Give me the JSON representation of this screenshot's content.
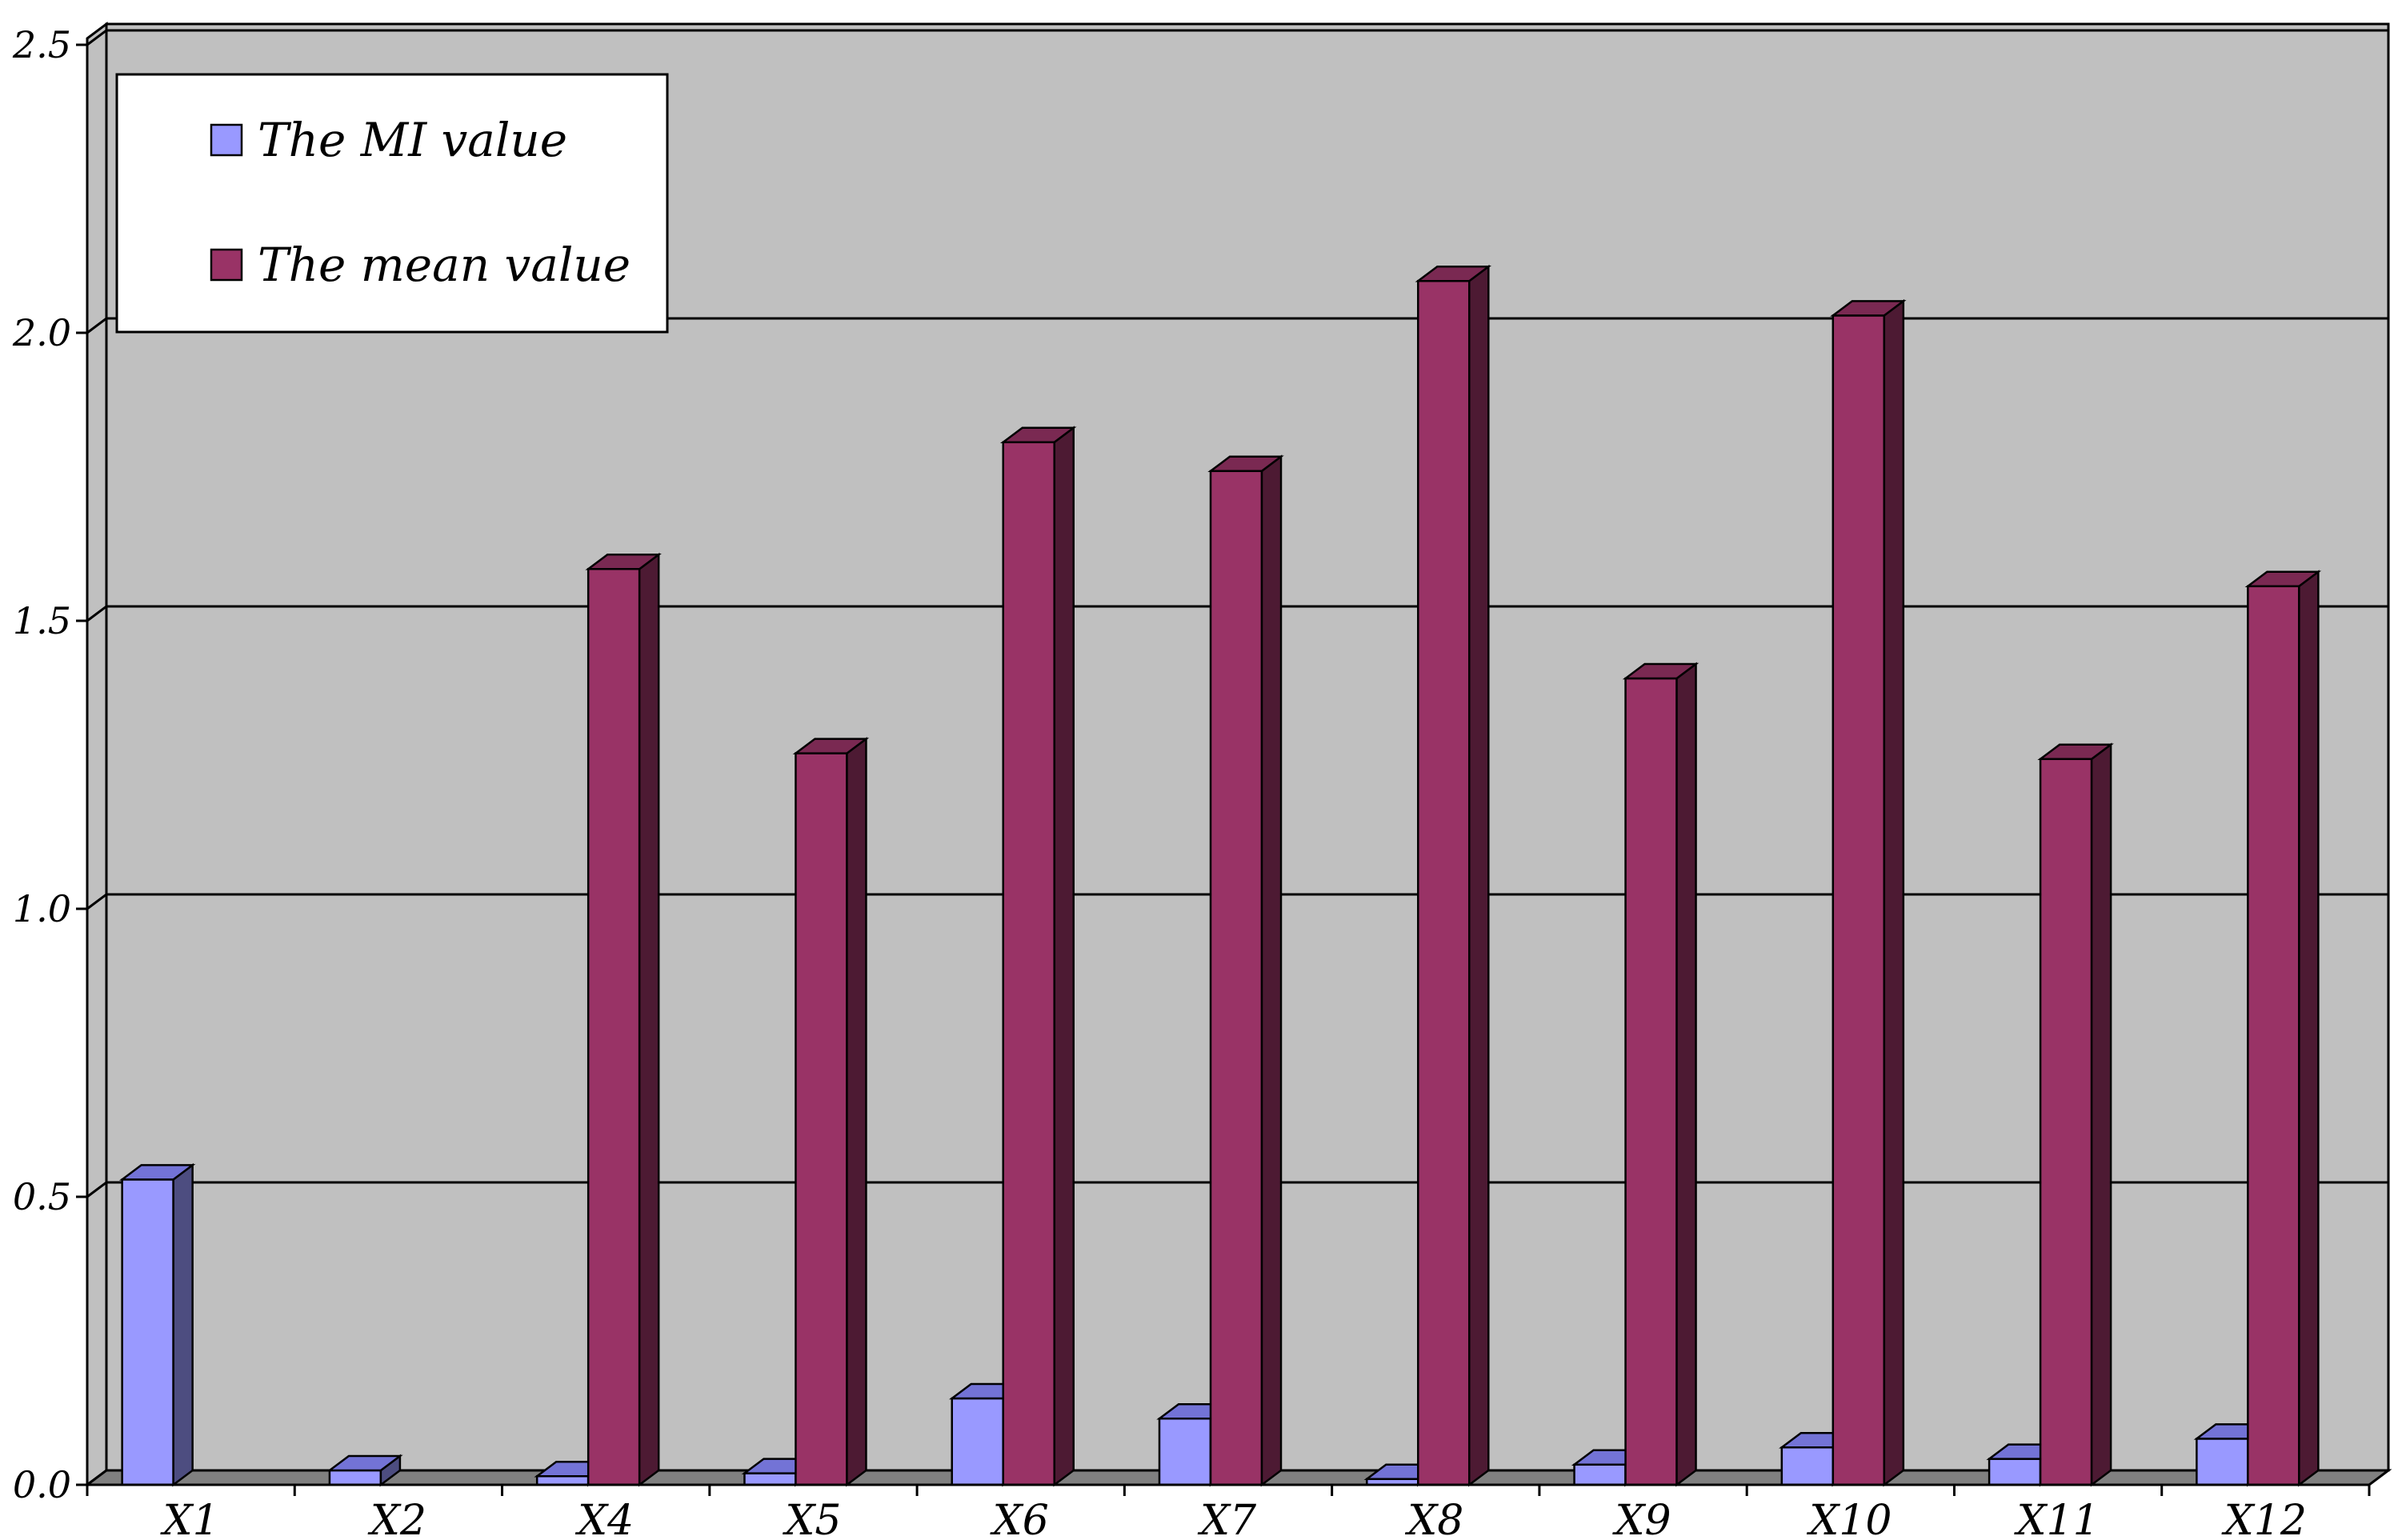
{
  "chart_data": {
    "type": "bar",
    "categories": [
      "X1",
      "X2",
      "X4",
      "X5",
      "X6",
      "X7",
      "X8",
      "X9",
      "X10",
      "X11",
      "X12"
    ],
    "series": [
      {
        "name": "The MI value",
        "color": "#9999ff",
        "side_color": "#4d4d80",
        "top_color": "#7373d6",
        "values": [
          0.53,
          0.025,
          0.015,
          0.02,
          0.15,
          0.115,
          0.01,
          0.035,
          0.065,
          0.045,
          0.08
        ]
      },
      {
        "name": "The mean value",
        "color": "#993366",
        "side_color": "#4d1a33",
        "top_color": "#7a2952",
        "values": [
          null,
          null,
          1.59,
          1.27,
          1.81,
          1.76,
          2.09,
          1.4,
          2.03,
          1.26,
          1.56
        ]
      }
    ],
    "y_ticks": [
      "0.0",
      "0.5",
      "1.0",
      "1.5",
      "2.0",
      "2.5"
    ],
    "ylim": [
      0,
      2.5
    ],
    "grid": true,
    "legend_position": "top-left",
    "colors": {
      "plot_background": "#c0c0c0",
      "floor": "#808080",
      "gridline": "#000000"
    }
  }
}
